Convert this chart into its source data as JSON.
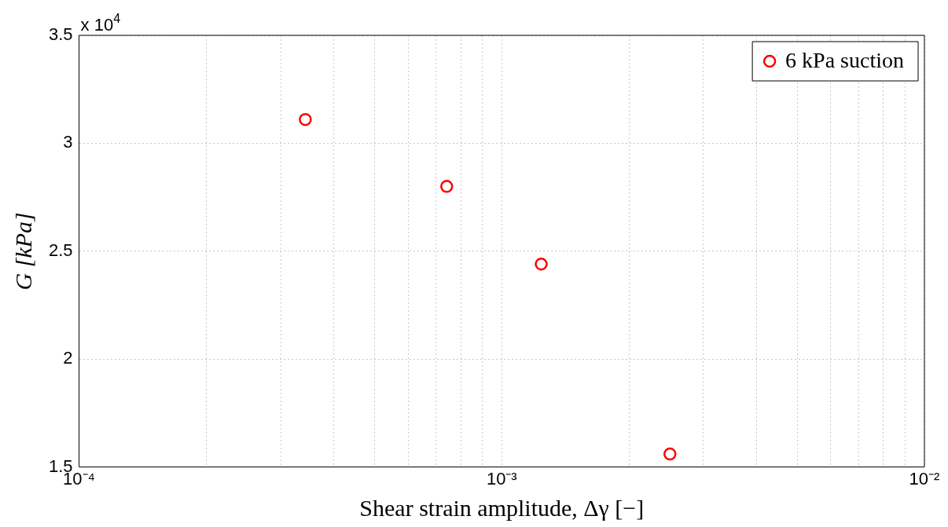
{
  "chart_data": {
    "type": "scatter",
    "xlabel": "Shear strain amplitude, Δγ [−]",
    "ylabel": "G [kPa]",
    "annotations": [
      "x 10$^{4}$"
    ],
    "x": [
      0.000343,
      0.000741,
      0.00124,
      0.0025
    ],
    "series": [
      {
        "name": "6 kPa suction",
        "color": "#ff0000",
        "values": [
          3.11,
          2.8,
          2.44,
          1.56
        ]
      }
    ],
    "log": "x",
    "xlim": [
      0.0001,
      0.01
    ],
    "xticks": [
      {
        "value": 0.0001,
        "label": "10⁻⁴"
      },
      {
        "value": 0.0002,
        "label": null
      },
      {
        "value": 0.0003,
        "label": null
      },
      {
        "value": 0.0004,
        "label": null
      },
      {
        "value": 0.0005,
        "label": null
      },
      {
        "value": 0.0006,
        "label": null
      },
      {
        "value": 0.0007,
        "label": null
      },
      {
        "value": 0.0008,
        "label": null
      },
      {
        "value": 0.0009,
        "label": null
      },
      {
        "value": 0.001,
        "label": "10⁻³"
      },
      {
        "value": 0.002,
        "label": null
      },
      {
        "value": 0.003,
        "label": null
      },
      {
        "value": 0.004,
        "label": null
      },
      {
        "value": 0.005,
        "label": null
      },
      {
        "value": 0.006,
        "label": null
      },
      {
        "value": 0.007,
        "label": null
      },
      {
        "value": 0.008,
        "label": null
      },
      {
        "value": 0.009,
        "label": null
      },
      {
        "value": 0.01,
        "label": "10⁻²"
      }
    ],
    "ylim": [
      1.5,
      3.5
    ],
    "yticks": [
      1.5,
      2,
      2.5,
      3,
      3.5
    ],
    "grid": true,
    "legend": "top right",
    "marker": "circle"
  }
}
